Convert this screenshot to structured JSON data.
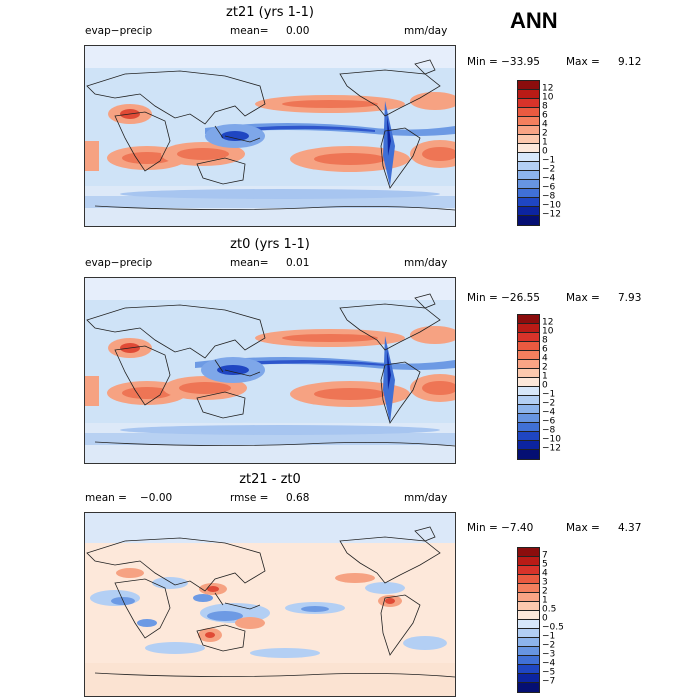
{
  "season": "ANN",
  "panels": [
    {
      "title": "zt21 (yrs 1-1)",
      "field": "evap−precip",
      "mean_text": "mean=",
      "mean_value": "0.00",
      "units": "mm/day",
      "min_text": "Min = −33.95",
      "max_text": "Max =",
      "max_value": "9.12",
      "colorbar": {
        "labels": [
          "12",
          "10",
          "8",
          "6",
          "4",
          "2",
          "1",
          "0",
          "−1",
          "−2",
          "−4",
          "−6",
          "−8",
          "−10",
          "−12"
        ],
        "colors": [
          "#8b0d0d",
          "#b91b16",
          "#d8332a",
          "#ea5a40",
          "#f47f5e",
          "#f9a485",
          "#fdc9ae",
          "#fde8da",
          "#d7e7fa",
          "#b3cff4",
          "#8db4ec",
          "#6795e2",
          "#4070d6",
          "#1f46c2",
          "#0c24a0",
          "#050f73"
        ]
      }
    },
    {
      "title": "zt0 (yrs 1-1)",
      "field": "evap−precip",
      "mean_text": "mean=",
      "mean_value": "0.01",
      "units": "mm/day",
      "min_text": "Min = −26.55",
      "max_text": "Max =",
      "max_value": "7.93",
      "colorbar": {
        "labels": [
          "12",
          "10",
          "8",
          "6",
          "4",
          "2",
          "1",
          "0",
          "−1",
          "−2",
          "−4",
          "−6",
          "−8",
          "−10",
          "−12"
        ],
        "colors": [
          "#8b0d0d",
          "#b91b16",
          "#d8332a",
          "#ea5a40",
          "#f47f5e",
          "#f9a485",
          "#fdc9ae",
          "#fde8da",
          "#d7e7fa",
          "#b3cff4",
          "#8db4ec",
          "#6795e2",
          "#4070d6",
          "#1f46c2",
          "#0c24a0",
          "#050f73"
        ]
      }
    },
    {
      "title": "zt21 - zt0",
      "mean_text": "mean =",
      "mean_value": "−0.00",
      "rmse_text": "rmse =",
      "rmse_value": "0.68",
      "units": "mm/day",
      "min_text": "Min = −7.40",
      "max_text": "Max =",
      "max_value": "4.37",
      "colorbar": {
        "labels": [
          "7",
          "5",
          "4",
          "3",
          "2",
          "1",
          "0.5",
          "0",
          "−0.5",
          "−1",
          "−2",
          "−3",
          "−4",
          "−5",
          "−7"
        ],
        "colors": [
          "#8b0d0d",
          "#b91b16",
          "#d8332a",
          "#ea5a40",
          "#f47f5e",
          "#f9a485",
          "#fdc9ae",
          "#fde8da",
          "#d7e7fa",
          "#b3cff4",
          "#8db4ec",
          "#6795e2",
          "#4070d6",
          "#1f46c2",
          "#0c24a0",
          "#050f73"
        ]
      }
    }
  ]
}
